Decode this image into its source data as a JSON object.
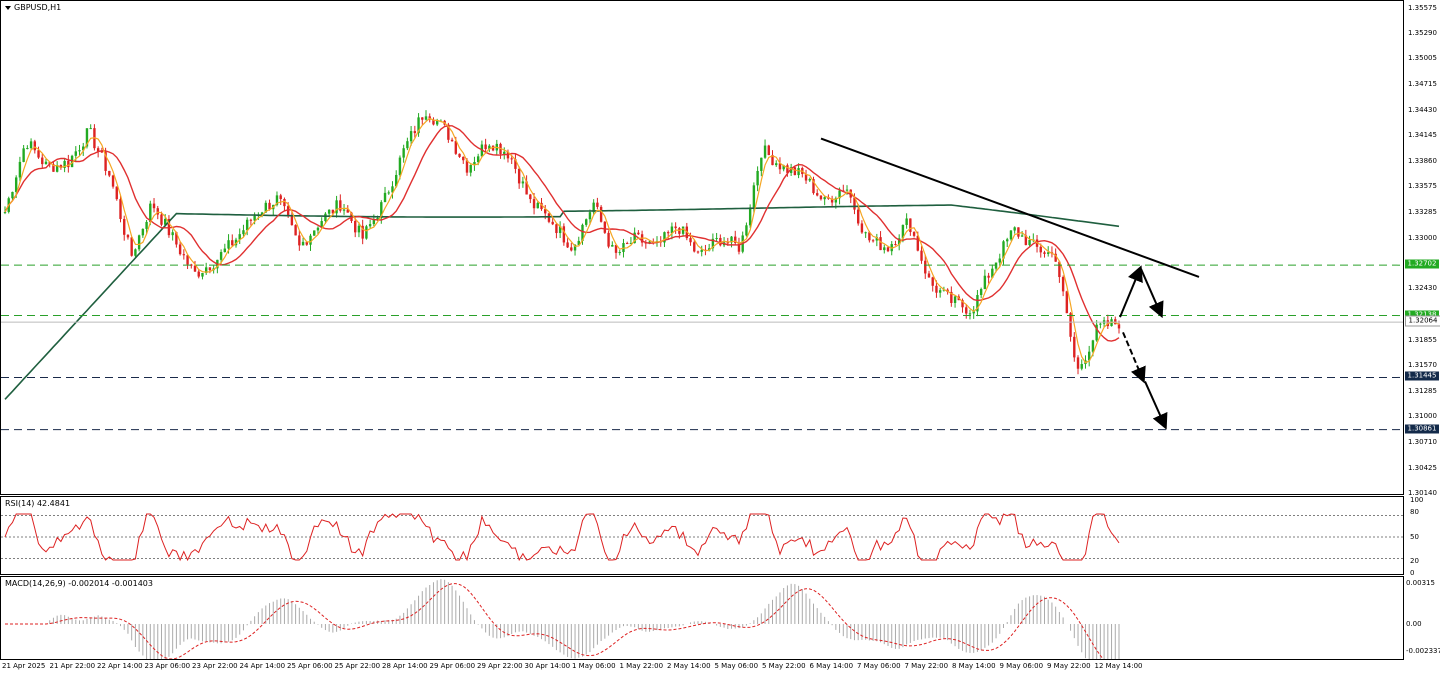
{
  "window": {
    "title": "GBPUSD,H1"
  },
  "indicators": {
    "rsi_title": "RSI(14) 42.4841",
    "macd_title": "MACD(14,26,9) -0.002014 -0.001403",
    "rsi_levels": [
      "100",
      "80",
      "50",
      "20",
      "0"
    ],
    "macd_levels": [
      "0.00315",
      "0.00",
      "-0.002337"
    ]
  },
  "price_axis": {
    "labels": [
      "1.35575",
      "1.35290",
      "1.35005",
      "1.34715",
      "1.34430",
      "1.34145",
      "1.33860",
      "1.33575",
      "1.33285",
      "1.33000",
      "1.32430",
      "1.31855",
      "1.31570",
      "1.31285",
      "1.31000",
      "1.30710",
      "1.30425",
      "1.30140"
    ],
    "tags": {
      "resistance": "1.32702",
      "upper_level": "1.32138",
      "current": "1.32064",
      "support1": "1.31445",
      "support2": "1.30861"
    }
  },
  "time_axis": {
    "labels": [
      "21 Apr 2025",
      "21 Apr 22:00",
      "22 Apr 14:00",
      "23 Apr 06:00",
      "23 Apr 22:00",
      "24 Apr 14:00",
      "25 Apr 06:00",
      "25 Apr 22:00",
      "28 Apr 14:00",
      "29 Apr 06:00",
      "29 Apr 22:00",
      "30 Apr 14:00",
      "1 May 06:00",
      "1 May 22:00",
      "2 May 14:00",
      "5 May 06:00",
      "5 May 22:00",
      "6 May 14:00",
      "7 May 06:00",
      "7 May 22:00",
      "8 May 14:00",
      "9 May 06:00",
      "9 May 22:00",
      "12 May 14:00"
    ]
  },
  "colors": {
    "bull": "#22aa22",
    "bear": "#dd2222",
    "ma_fast": "#f5a623",
    "ma_mid": "#e03030",
    "ma_slow": "#1f5f3f",
    "level_green": "#2aa02a",
    "level_navy": "#1a2a4a"
  },
  "chart_data": {
    "type": "candlestick",
    "symbol": "GBPUSD",
    "timeframe": "H1",
    "ylim": [
      1.3014,
      1.3566
    ],
    "support_resistance": [
      1.32702,
      1.32138,
      1.31445,
      1.30861
    ],
    "current_price": 1.32064,
    "trendline": {
      "from": [
        1.3412,
        "6 May 14:00"
      ],
      "to": [
        1.3266,
        "12 May 14:00"
      ]
    },
    "path": [
      1.333,
      1.341,
      1.338,
      1.3385,
      1.342,
      1.337,
      1.328,
      1.334,
      1.33,
      1.326,
      1.3275,
      1.33,
      1.333,
      1.3345,
      1.329,
      1.332,
      1.334,
      1.33,
      1.334,
      1.34,
      1.3445,
      1.342,
      1.338,
      1.341,
      1.3395,
      1.334,
      1.332,
      1.329,
      1.334,
      1.328,
      1.33,
      1.329,
      1.3315,
      1.328,
      1.33,
      1.329,
      1.34,
      1.338,
      1.337,
      1.334,
      1.336,
      1.33,
      1.329,
      1.332,
      1.325,
      1.323,
      1.322,
      1.327,
      1.331,
      1.329,
      1.328,
      1.315,
      1.32,
      1.3206
    ],
    "rsi": {
      "last": 42.4841,
      "levels": [
        80,
        50,
        20
      ]
    },
    "macd": {
      "main": -0.002014,
      "signal": -0.001403
    }
  }
}
